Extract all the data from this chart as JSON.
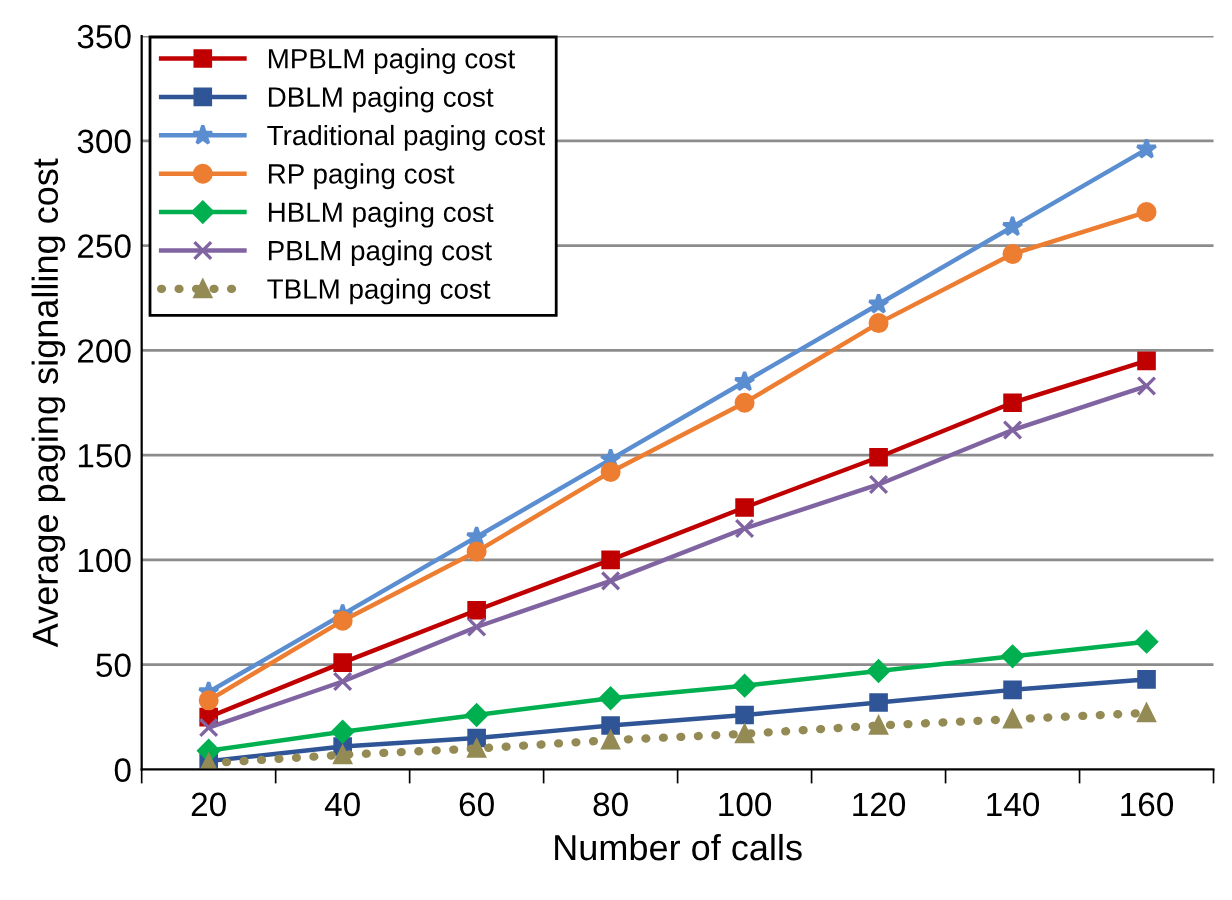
{
  "chart_data": {
    "type": "line",
    "xlabel": "Number of calls",
    "ylabel": "Average paging signalling cost",
    "categories": [
      "20",
      "40",
      "60",
      "80",
      "100",
      "120",
      "140",
      "160"
    ],
    "ylim": [
      0,
      350
    ],
    "yticks": [
      0,
      50,
      100,
      150,
      200,
      250,
      300,
      350
    ],
    "grid": "y",
    "legend": "top left",
    "series": [
      {
        "name": "MPBLM paging cost",
        "color": "#c00000",
        "marker": "square",
        "values": [
          25,
          51,
          76,
          100,
          125,
          149,
          175,
          195
        ]
      },
      {
        "name": "DBLM paging cost",
        "color": "#2f5597",
        "marker": "square",
        "values": [
          4,
          11,
          15,
          21,
          26,
          32,
          38,
          43
        ]
      },
      {
        "name": "Traditional paging cost",
        "color": "#5b8ed0",
        "marker": "star",
        "values": [
          37,
          74,
          111,
          148,
          185,
          222,
          259,
          296
        ]
      },
      {
        "name": "RP paging cost",
        "color": "#ed7d31",
        "marker": "circle",
        "values": [
          33,
          71,
          104,
          142,
          175,
          213,
          246,
          266
        ]
      },
      {
        "name": "HBLM paging cost",
        "color": "#00b050",
        "marker": "diamond",
        "values": [
          9,
          18,
          26,
          34,
          40,
          47,
          54,
          61
        ]
      },
      {
        "name": "PBLM paging cost",
        "color": "#8064a2",
        "marker": "cross",
        "values": [
          20,
          42,
          68,
          90,
          115,
          136,
          162,
          183
        ]
      },
      {
        "name": "TBLM paging cost",
        "color": "#948a54",
        "marker": "triangle",
        "line_style": "dotted",
        "values": [
          3,
          7,
          10,
          14,
          17,
          21,
          24,
          27
        ]
      }
    ]
  }
}
